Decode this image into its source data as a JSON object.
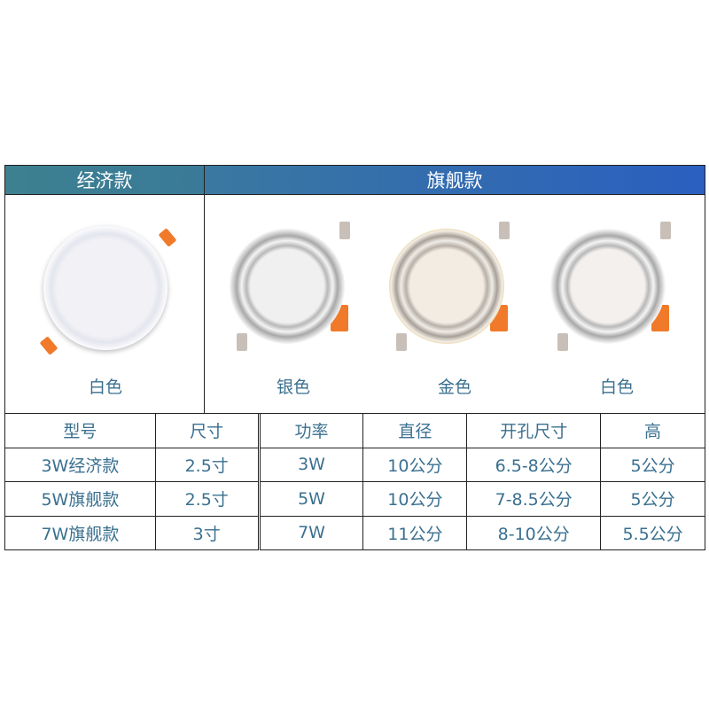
{
  "header": {
    "economy": "经济款",
    "flagship": "旗舰款"
  },
  "products": [
    {
      "caption": "白色",
      "finish": "white",
      "series": "economy"
    },
    {
      "caption": "银色",
      "finish": "silver",
      "series": "flagship"
    },
    {
      "caption": "金色",
      "finish": "gold",
      "series": "flagship"
    },
    {
      "caption": "白色",
      "finish": "white",
      "series": "flagship"
    }
  ],
  "table": {
    "headers": [
      "型号",
      "尺寸",
      "功率",
      "直径",
      "开孔尺寸",
      "高"
    ],
    "rows": [
      [
        "3W经济款",
        "2.5寸",
        "3W",
        "10公分",
        "6.5-8公分",
        "5公分"
      ],
      [
        "5W旗舰款",
        "2.5寸",
        "5W",
        "10公分",
        "7-8.5公分",
        "5公分"
      ],
      [
        "7W旗舰款",
        "3寸",
        "7W",
        "11公分",
        "8-10公分",
        "5.5公分"
      ]
    ]
  },
  "colors": {
    "text": "#3a7090",
    "header_start": "#3d8090",
    "header_end": "#2b5fc0",
    "orange": "#f07a2a"
  }
}
